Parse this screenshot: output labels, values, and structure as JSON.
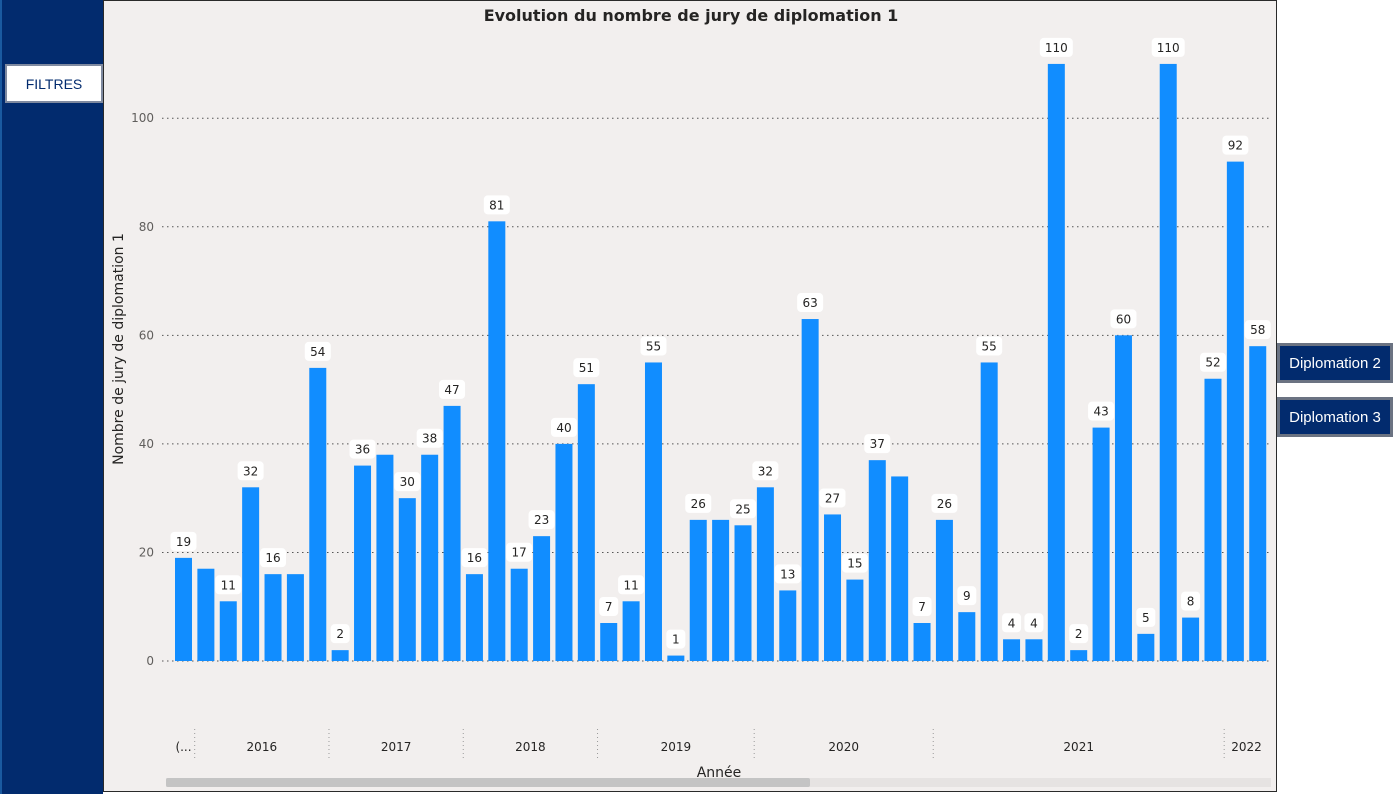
{
  "sidebar": {
    "filter_label": "FILTRES"
  },
  "buttons": {
    "diplomation2": "Diplomation 2",
    "diplomation3": "Diplomation 3"
  },
  "colors": {
    "bar": "#118dff",
    "sidebar": "#022b6e",
    "panel": "#f2efee",
    "grid": "#555555"
  },
  "chart_data": {
    "type": "bar",
    "title": "Evolution du nombre de jury de diplomation 1",
    "xlabel": "Année",
    "ylabel": "Nombre de jury de diplomation 1",
    "ylim": [
      0,
      115
    ],
    "yticks": [
      0,
      20,
      40,
      60,
      80,
      100
    ],
    "grid": true,
    "values": [
      19,
      17,
      11,
      32,
      16,
      16,
      54,
      2,
      36,
      38,
      30,
      38,
      47,
      16,
      81,
      17,
      23,
      40,
      51,
      7,
      11,
      55,
      1,
      26,
      26,
      25,
      32,
      13,
      63,
      27,
      15,
      37,
      34,
      7,
      26,
      9,
      55,
      4,
      4,
      110,
      2,
      43,
      60,
      5,
      110,
      8,
      52,
      92,
      58
    ],
    "shown_labels": [
      19,
      null,
      11,
      32,
      16,
      null,
      54,
      2,
      36,
      null,
      30,
      38,
      47,
      16,
      81,
      17,
      23,
      40,
      51,
      7,
      11,
      55,
      1,
      26,
      null,
      25,
      32,
      13,
      63,
      27,
      15,
      37,
      null,
      7,
      26,
      9,
      55,
      4,
      4,
      110,
      2,
      43,
      60,
      5,
      110,
      8,
      52,
      92,
      58
    ],
    "year_groups": [
      {
        "label": "(...",
        "start": 0,
        "end": 0
      },
      {
        "label": "2016",
        "start": 1,
        "end": 6
      },
      {
        "label": "2017",
        "start": 7,
        "end": 12
      },
      {
        "label": "2018",
        "start": 13,
        "end": 18
      },
      {
        "label": "2019",
        "start": 19,
        "end": 25
      },
      {
        "label": "2020",
        "start": 26,
        "end": 33
      },
      {
        "label": "2021",
        "start": 34,
        "end": 46
      },
      {
        "label": "2022",
        "start": 47,
        "end": 48
      }
    ]
  }
}
